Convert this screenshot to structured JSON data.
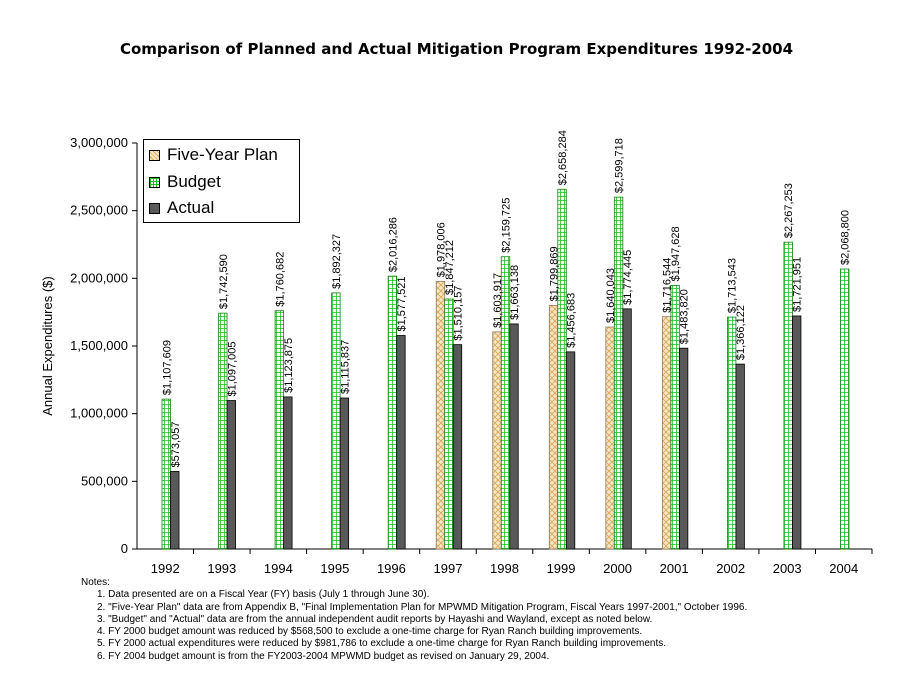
{
  "chart_data": {
    "type": "bar",
    "title": "Comparison of Planned and Actual Mitigation Program Expenditures 1992-2004",
    "ylabel": "Annual Expenditures ($)",
    "xlabel": "",
    "ylim": [
      0,
      3000000
    ],
    "yticks": [
      "0",
      "500,000",
      "1,000,000",
      "1,500,000",
      "2,000,000",
      "2,500,000",
      "3,000,000"
    ],
    "categories": [
      "1992",
      "1993",
      "1994",
      "1995",
      "1996",
      "1997",
      "1998",
      "1999",
      "2000",
      "2001",
      "2002",
      "2003",
      "2004"
    ],
    "legend_position": "top-left",
    "grid": false,
    "series": [
      {
        "name": "Five-Year Plan",
        "color": "#f2dcb3",
        "pattern": "diagonal-cross",
        "values": [
          null,
          null,
          null,
          null,
          null,
          1978006,
          1603917,
          1799869,
          1640043,
          1716544,
          null,
          null,
          null
        ],
        "labels": [
          "",
          "",
          "",
          "",
          "",
          "$1,978,006",
          "$1,603,917",
          "$1,799,869",
          "$1,640,043",
          "$1,716,544",
          "",
          "",
          ""
        ]
      },
      {
        "name": "Budget",
        "color": "#33cc33",
        "pattern": "grid",
        "values": [
          1107609,
          1742590,
          1760682,
          1892327,
          2016286,
          1847212,
          2159725,
          2658284,
          2599718,
          1947628,
          1713543,
          2267253,
          2068800
        ],
        "labels": [
          "$1,107,609",
          "$1,742,590",
          "$1,760,682",
          "$1,892,327",
          "$2,016,286",
          "$1,847,212",
          "$2,159,725",
          "$2,658,284",
          "$2,599,718",
          "$1,947,628",
          "$1,713,543",
          "$2,267,253",
          "$2,068,800"
        ]
      },
      {
        "name": "Actual",
        "color": "#595959",
        "pattern": "solid",
        "values": [
          573057,
          1097005,
          1123875,
          1115837,
          1577521,
          1510157,
          1663138,
          1456683,
          1774445,
          1483820,
          1366122,
          1721951,
          null
        ],
        "labels": [
          "$573,057",
          "$1,097,005",
          "$1,123,875",
          "$1,115,837",
          "$1,577,521",
          "$1,510,157",
          "$1,663,138",
          "$1,456,683",
          "$1,774,445",
          "$1,483,820",
          "$1,366,122",
          "$1,721,951",
          ""
        ]
      }
    ]
  },
  "notes": {
    "heading": "Notes:",
    "lines": [
      "1.  Data presented are on a Fiscal Year (FY) basis (July 1 through June 30).",
      "2.  \"Five-Year Plan\" data are from Appendix B, \"Final Implementation Plan for MPWMD Mitigation Program, Fiscal Years 1997-2001,\" October 1996.",
      "3.  \"Budget\" and \"Actual\" data are from the annual independent audit reports by Hayashi and Wayland, except as noted below.",
      "4.  FY 2000 budget amount was reduced by $568,500 to exclude a one-time charge for Ryan Ranch building improvements.",
      "5.  FY 2000 actual expenditures were reduced by $981,786 to exclude a one-time charge for Ryan Ranch building improvements.",
      "6.  FY 2004 budget amount is from the FY2003-2004 MPWMD budget as revised on January 29, 2004."
    ]
  }
}
